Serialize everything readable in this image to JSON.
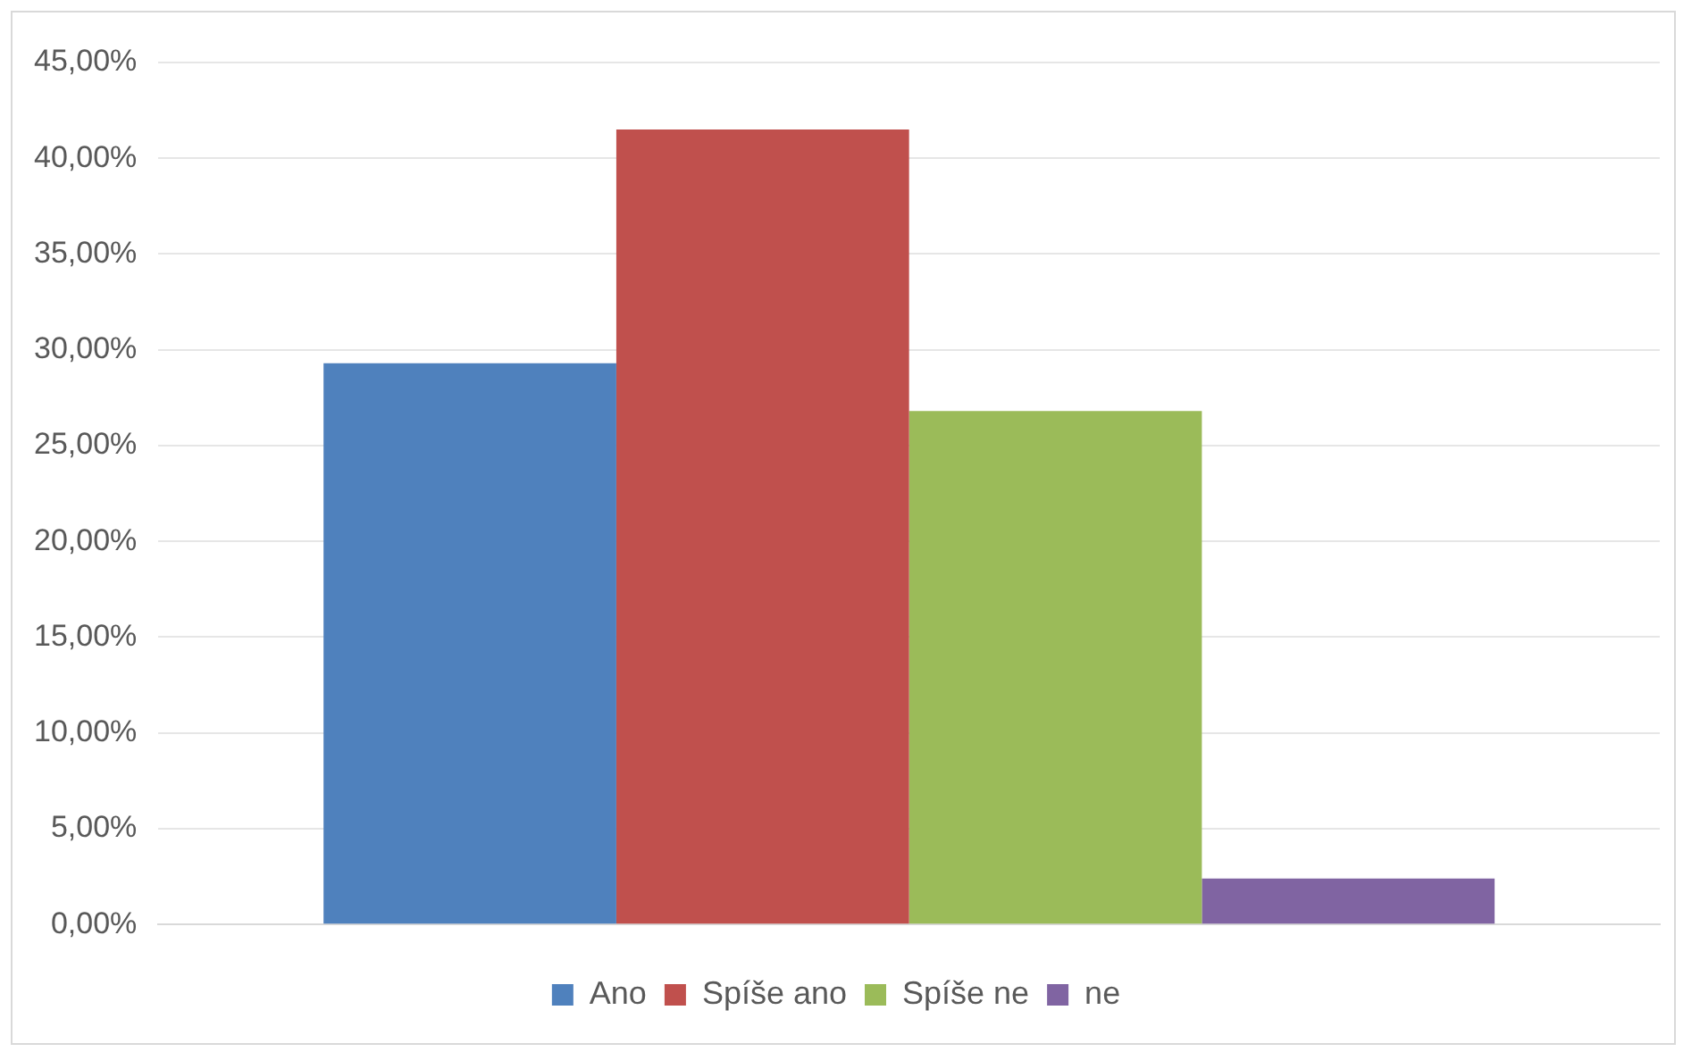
{
  "chart_data": {
    "type": "bar",
    "categories": [
      null
    ],
    "series": [
      {
        "name": "Ano",
        "color": "#4f81bd",
        "values": [
          29.3
        ]
      },
      {
        "name": "Spíše ano",
        "color": "#c0504d",
        "values": [
          41.5
        ]
      },
      {
        "name": "Spíše ne",
        "color": "#9bbb59",
        "values": [
          26.8
        ]
      },
      {
        "name": "ne",
        "color": "#8064a2",
        "values": [
          2.4
        ]
      }
    ],
    "ylim": [
      0,
      45
    ],
    "yticks": [
      {
        "value": 0,
        "label": "0,00%"
      },
      {
        "value": 5,
        "label": "5,00%"
      },
      {
        "value": 10,
        "label": "10,00%"
      },
      {
        "value": 15,
        "label": "15,00%"
      },
      {
        "value": 20,
        "label": "20,00%"
      },
      {
        "value": 25,
        "label": "25,00%"
      },
      {
        "value": 30,
        "label": "30,00%"
      },
      {
        "value": 35,
        "label": "35,00%"
      },
      {
        "value": 40,
        "label": "40,00%"
      },
      {
        "value": 45,
        "label": "45,00%"
      }
    ],
    "grid": "y",
    "legend": "bottom"
  }
}
